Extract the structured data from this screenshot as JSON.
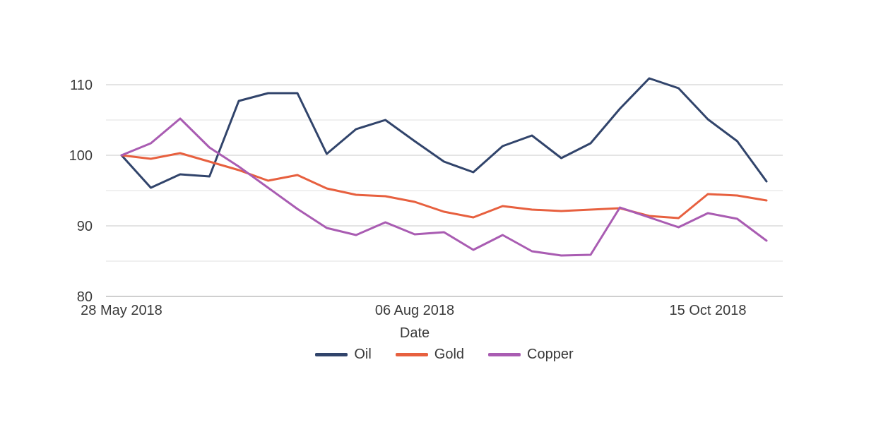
{
  "chart_data": {
    "type": "line",
    "title": "",
    "xlabel": "Date",
    "ylabel": "",
    "grid": "horizontal",
    "legend_position": "bottom-center",
    "ylim": [
      80,
      113
    ],
    "y_ticks": [
      110,
      100,
      90,
      80
    ],
    "y_minor_ticks": [
      105,
      95,
      85
    ],
    "x_tick_labels": [
      "28 May 2018",
      "06 Aug 2018",
      "15 Oct 2018"
    ],
    "x_tick_indices": [
      0,
      10,
      20
    ],
    "x_dates": [
      "2018-05-28",
      "2018-06-04",
      "2018-06-11",
      "2018-06-18",
      "2018-06-25",
      "2018-07-02",
      "2018-07-09",
      "2018-07-16",
      "2018-07-23",
      "2018-07-30",
      "2018-08-06",
      "2018-08-13",
      "2018-08-20",
      "2018-08-27",
      "2018-09-03",
      "2018-09-10",
      "2018-09-17",
      "2018-09-24",
      "2018-10-01",
      "2018-10-08",
      "2018-10-15",
      "2018-10-22",
      "2018-10-29"
    ],
    "series": [
      {
        "name": "Oil",
        "color": "#31446b",
        "values": [
          100,
          95.4,
          97.3,
          97.0,
          107.7,
          108.8,
          108.8,
          100.2,
          103.7,
          105.0,
          102.0,
          99.1,
          97.6,
          101.3,
          102.8,
          99.6,
          101.7,
          106.6,
          110.9,
          109.5,
          105.1,
          102.0,
          96.3
        ]
      },
      {
        "name": "Gold",
        "color": "#e7603f",
        "values": [
          100,
          99.5,
          100.3,
          99.1,
          97.9,
          96.4,
          97.2,
          95.3,
          94.4,
          94.2,
          93.4,
          92.0,
          91.2,
          92.8,
          92.3,
          92.1,
          92.3,
          92.5,
          91.4,
          91.1,
          94.5,
          94.3,
          93.6
        ]
      },
      {
        "name": "Copper",
        "color": "#a95cb2",
        "values": [
          100,
          101.7,
          105.2,
          101.1,
          98.4,
          95.4,
          92.4,
          89.7,
          88.7,
          90.5,
          88.8,
          89.1,
          86.6,
          88.7,
          86.4,
          85.8,
          85.9,
          92.6,
          91.2,
          89.8,
          91.8,
          91.0,
          87.9
        ]
      }
    ],
    "style": {
      "major_grid_color": "#dcdcdc",
      "minor_grid_color": "#ececec",
      "axis_line_color": "#cfcfcf",
      "text_color": "#3a3a3a",
      "background": "#ffffff"
    }
  }
}
